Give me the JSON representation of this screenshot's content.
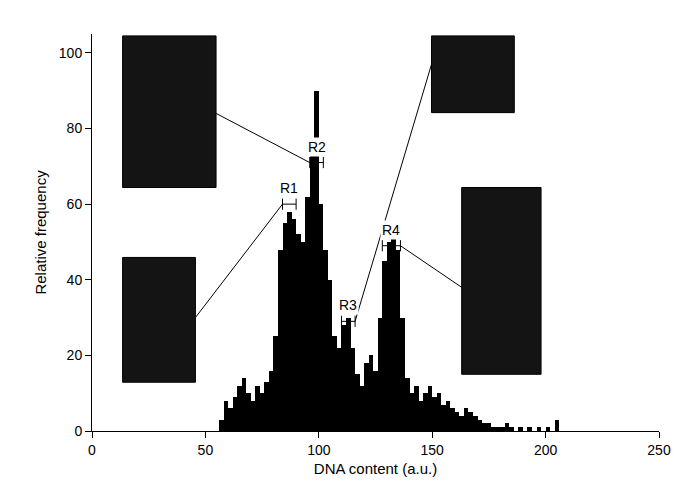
{
  "chart_data": {
    "type": "histogram",
    "x_label": "DNA content (a.u.)",
    "y_label": "Relative frequency",
    "bins": [
      56,
      58,
      60,
      62,
      64,
      66,
      68,
      70,
      72,
      74,
      76,
      78,
      80,
      82,
      84,
      86,
      88,
      90,
      92,
      94,
      96,
      98,
      100,
      102,
      104,
      106,
      108,
      110,
      112,
      114,
      116,
      118,
      120,
      122,
      124,
      126,
      128,
      130,
      132,
      134,
      136,
      138,
      140,
      142,
      144,
      146,
      148,
      150,
      152,
      154,
      156,
      158,
      160,
      162,
      164,
      166,
      168,
      170,
      172,
      174,
      176,
      178,
      180,
      182,
      184,
      186,
      188,
      190,
      192,
      194,
      196,
      198,
      200,
      202,
      204,
      206,
      208,
      210
    ],
    "counts": [
      3,
      8,
      6,
      9,
      12,
      14,
      10,
      8,
      12,
      10,
      13,
      16,
      25,
      48,
      55,
      58,
      56,
      52,
      50,
      62,
      75,
      90,
      60,
      48,
      40,
      25,
      22,
      28,
      30,
      22,
      15,
      12,
      18,
      20,
      16,
      30,
      45,
      50,
      53,
      48,
      30,
      14,
      10,
      12,
      8,
      10,
      12,
      9,
      10,
      7,
      8,
      6,
      5,
      4,
      6,
      5,
      4,
      3,
      2,
      2,
      1,
      1,
      1,
      2,
      1,
      0,
      1,
      0,
      1,
      0,
      1,
      0,
      1,
      0,
      3,
      0,
      0
    ],
    "color": "#000000",
    "regions": [
      {
        "label": "R1",
        "x": [
          84,
          90
        ],
        "y": 60
      },
      {
        "label": "R2",
        "x": [
          96,
          102
        ],
        "y": 71
      },
      {
        "label": "R3",
        "x": [
          110,
          116
        ],
        "y": 29
      },
      {
        "label": "R4",
        "x": [
          128,
          136
        ],
        "y": 49
      }
    ],
    "xlim": [
      0,
      250
    ],
    "xticks": [
      0,
      50,
      100,
      150,
      200,
      250
    ],
    "ylim": [
      0,
      105
    ],
    "yticks": [
      0,
      20,
      40,
      60,
      80,
      100
    ],
    "grid": false
  }
}
